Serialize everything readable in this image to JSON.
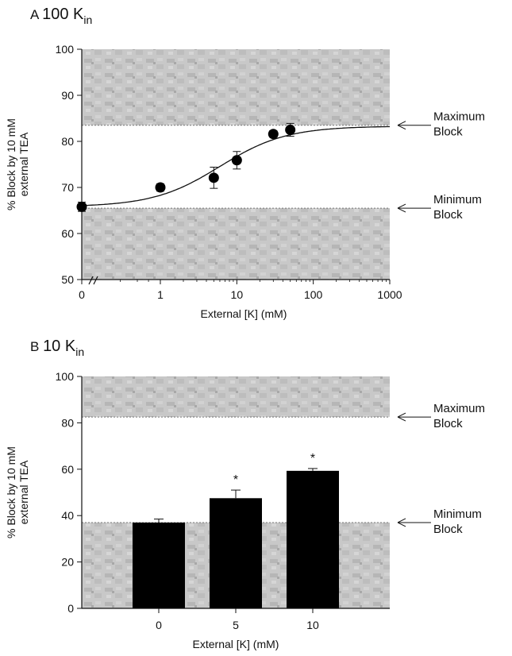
{
  "chart_data": [
    {
      "panel_letter": "A",
      "panel_title_main": "100 K",
      "panel_title_sub": "in",
      "type": "scatter",
      "x_scale": "log",
      "x_axis_break": true,
      "xlabel": "External [K] (mM)",
      "ylabel": "% Block by 10 mM external TEA",
      "ylabel_lines": [
        "% Block by 10 mM",
        "external TEA"
      ],
      "xlim": [
        0.3,
        1000
      ],
      "ylim": [
        50,
        100
      ],
      "x_ticks": [
        0,
        1,
        10,
        100,
        1000
      ],
      "x_tick_labels": [
        "0",
        "1",
        "10",
        "100",
        "1000"
      ],
      "y_ticks": [
        50,
        60,
        70,
        80,
        90,
        100
      ],
      "y_tick_labels": [
        "50",
        "60",
        "70",
        "80",
        "90",
        "100"
      ],
      "grid": false,
      "shaded_regions": [
        {
          "from": 83.5,
          "to": 100
        },
        {
          "from": 50,
          "to": 65.5
        }
      ],
      "points": [
        {
          "x": 0,
          "y": 65.8,
          "err": 1.0
        },
        {
          "x": 1,
          "y": 70.0,
          "err": 0.8
        },
        {
          "x": 5,
          "y": 72.1,
          "err": 2.3
        },
        {
          "x": 10,
          "y": 75.9,
          "err": 1.9
        },
        {
          "x": 30,
          "y": 81.6,
          "err": 0.7
        },
        {
          "x": 50,
          "y": 82.5,
          "err": 1.4
        }
      ],
      "fit_curve": {
        "min": 65.8,
        "max": 83.3,
        "k_half": 6,
        "hill": 1
      },
      "annotations": [
        {
          "line1": "Maximum",
          "line2": "Block",
          "y": 83.5
        },
        {
          "line1": "Minimum",
          "line2": "Block",
          "y": 65.5
        }
      ]
    },
    {
      "panel_letter": "B",
      "panel_title_main": "10 K",
      "panel_title_sub": "in",
      "type": "bar",
      "xlabel": "External [K] (mM)",
      "ylabel": "% Block by 10 mM external TEA",
      "ylabel_lines": [
        "% Block by 10 mM",
        "external TEA"
      ],
      "categories": [
        "0",
        "5",
        "10"
      ],
      "values": [
        37.0,
        47.5,
        59.3
      ],
      "errors": [
        1.5,
        3.5,
        1.0
      ],
      "significance": [
        "",
        "*",
        "*"
      ],
      "ylim": [
        0,
        100
      ],
      "y_ticks": [
        0,
        20,
        40,
        60,
        80,
        100
      ],
      "y_tick_labels": [
        "0",
        "20",
        "40",
        "60",
        "80",
        "100"
      ],
      "grid": false,
      "shaded_regions": [
        {
          "from": 82.5,
          "to": 100
        },
        {
          "from": 0,
          "to": 37
        }
      ],
      "annotations": [
        {
          "line1": "Maximum",
          "line2": "Block",
          "y": 82.5
        },
        {
          "line1": "Minimum",
          "line2": "Block",
          "y": 37
        }
      ]
    }
  ],
  "colors": {
    "shade_fill": "#cbcbcb",
    "shade_texture": "#a9a9a9",
    "axis": "#111111",
    "bar": "#000000",
    "marker": "#000000"
  }
}
